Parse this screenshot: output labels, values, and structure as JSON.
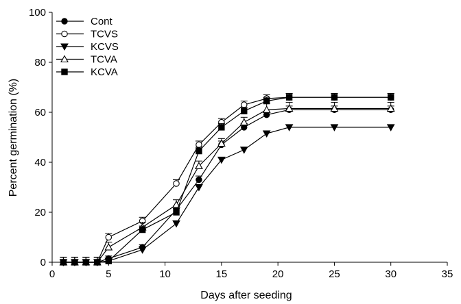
{
  "chart_data": {
    "type": "line",
    "xlabel": "Days after seeding",
    "ylabel": "Percent germination (%)",
    "xlim": [
      0,
      35
    ],
    "ylim": [
      0,
      100
    ],
    "xticks": [
      0,
      5,
      10,
      15,
      20,
      25,
      30,
      35
    ],
    "yticks": [
      0,
      20,
      40,
      60,
      80,
      100
    ],
    "grid": false,
    "legend_position": "top-left",
    "x": [
      1,
      2,
      3,
      4,
      5,
      8,
      11,
      13,
      15,
      17,
      19,
      21,
      25,
      30
    ],
    "series": [
      {
        "name": "Cont",
        "marker": "filled-circle",
        "values": [
          0,
          0,
          0,
          0,
          1.5,
          6,
          21,
          33,
          47,
          54,
          59,
          61,
          61,
          61
        ],
        "errors": [
          2,
          2,
          2,
          2,
          1,
          1,
          1.5,
          1.5,
          1.5,
          1.5,
          1,
          1.5,
          1.5,
          1.5
        ]
      },
      {
        "name": "TCVS",
        "marker": "open-circle",
        "values": [
          0,
          0,
          0,
          0,
          10,
          16.5,
          31.5,
          47,
          56,
          63,
          65.5,
          66,
          66,
          66
        ],
        "errors": [
          2,
          2,
          2,
          2,
          1.5,
          1.5,
          1.5,
          1.5,
          1.5,
          1.5,
          1.5,
          1.5,
          1.5,
          1.5
        ]
      },
      {
        "name": "KCVS",
        "marker": "filled-triangle-down",
        "values": [
          0,
          0,
          0,
          0,
          0.5,
          5,
          15.5,
          30,
          41,
          45,
          51.5,
          54,
          54,
          54
        ],
        "errors": [
          2,
          2,
          2,
          2,
          1,
          1,
          1,
          1,
          1,
          1,
          1,
          1,
          1,
          1
        ]
      },
      {
        "name": "TCVA",
        "marker": "open-triangle-up",
        "values": [
          0,
          0,
          0,
          0,
          6,
          14,
          23,
          38.5,
          47.5,
          56,
          61,
          61.5,
          61.5,
          61.5
        ],
        "errors": [
          2,
          2,
          2,
          2,
          2,
          2,
          2,
          2,
          2,
          2,
          2.5,
          2.5,
          2.5,
          2.5
        ]
      },
      {
        "name": "KCVA",
        "marker": "filled-square",
        "values": [
          0,
          0,
          0,
          0,
          0.5,
          13,
          20,
          44.5,
          54,
          60.5,
          64.5,
          66,
          66,
          66
        ],
        "errors": [
          2,
          2,
          2,
          2,
          1,
          1.5,
          1.5,
          1.5,
          1.5,
          1.5,
          1.5,
          1.5,
          1.5,
          1.5
        ]
      }
    ]
  }
}
